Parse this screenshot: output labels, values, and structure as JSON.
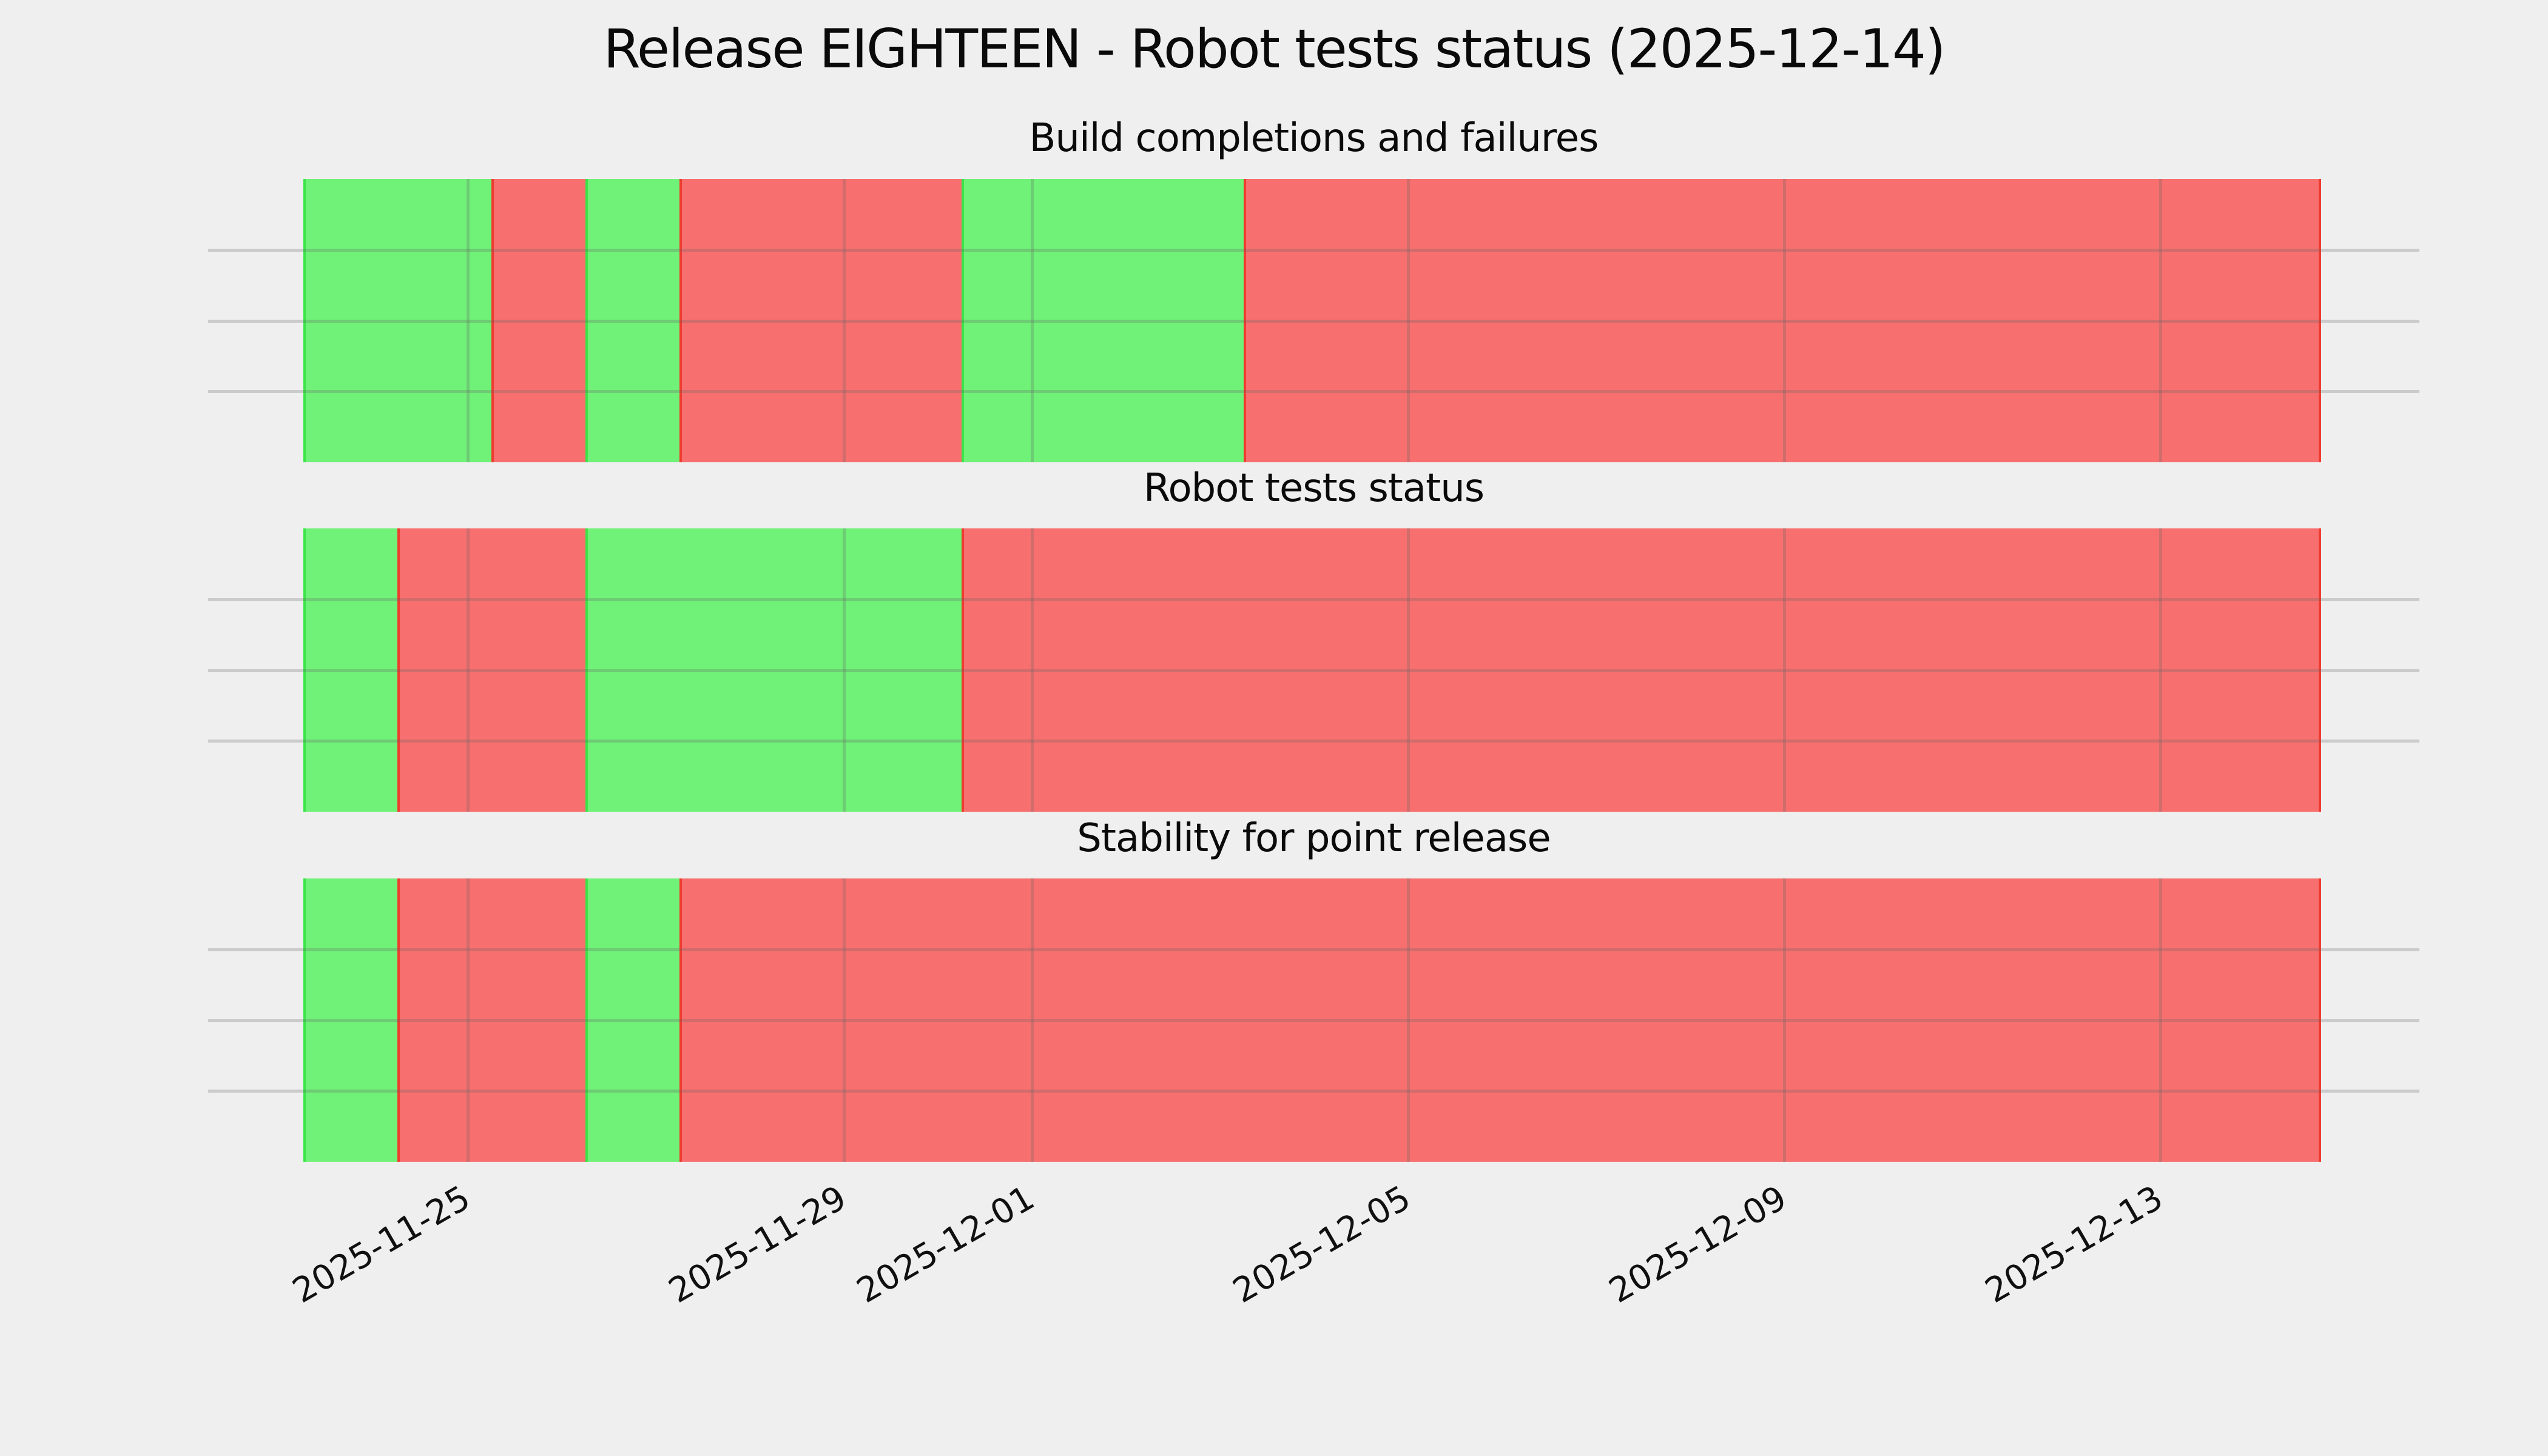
{
  "title": "Release EIGHTEEN - Robot tests status (2025-12-14)",
  "colors": {
    "background": "#efefef",
    "pass_fill": "#70f178",
    "fail_fill": "#f76f6f",
    "pass_edge": "#3be549",
    "fail_edge": "#f03b30",
    "gridline": "#cbcbcb",
    "text": "#0a0a0a"
  },
  "x_axis": {
    "ticks": [
      {
        "label": "2025-11-25",
        "date": "2025-11-25T00:00"
      },
      {
        "label": "2025-11-29",
        "date": "2025-11-29T00:00"
      },
      {
        "label": "2025-12-01",
        "date": "2025-12-01T00:00"
      },
      {
        "label": "2025-12-05",
        "date": "2025-12-05T00:00"
      },
      {
        "label": "2025-12-09",
        "date": "2025-12-09T00:00"
      },
      {
        "label": "2025-12-13",
        "date": "2025-12-13T00:00"
      }
    ],
    "label_rotation_deg": 30
  },
  "chart_data": {
    "type": "heatmap",
    "subtype": "status-timeline",
    "title": "Release EIGHTEEN - Robot tests status (2025-12-14)",
    "x_range": [
      "2025-11-23T06:00",
      "2025-12-14T17:00"
    ],
    "grid": true,
    "legend": false,
    "status_colors": {
      "pass": "green",
      "fail": "red"
    },
    "panels": [
      {
        "title": "Build completions and failures",
        "segments": [
          {
            "status": "pass",
            "start": "2025-11-23T06:00",
            "end": "2025-11-25T06:00"
          },
          {
            "status": "fail",
            "start": "2025-11-25T06:00",
            "end": "2025-11-26T06:00"
          },
          {
            "status": "pass",
            "start": "2025-11-26T06:00",
            "end": "2025-11-27T06:00"
          },
          {
            "status": "fail",
            "start": "2025-11-27T06:00",
            "end": "2025-11-30T06:00"
          },
          {
            "status": "pass",
            "start": "2025-11-30T06:00",
            "end": "2025-12-03T06:00"
          },
          {
            "status": "fail",
            "start": "2025-12-03T06:00",
            "end": "2025-12-14T17:00"
          }
        ]
      },
      {
        "title": "Robot tests status",
        "segments": [
          {
            "status": "pass",
            "start": "2025-11-23T06:00",
            "end": "2025-11-24T06:00"
          },
          {
            "status": "fail",
            "start": "2025-11-24T06:00",
            "end": "2025-11-26T06:00"
          },
          {
            "status": "pass",
            "start": "2025-11-26T06:00",
            "end": "2025-11-30T06:00"
          },
          {
            "status": "fail",
            "start": "2025-11-30T06:00",
            "end": "2025-12-14T17:00"
          }
        ]
      },
      {
        "title": "Stability for point release",
        "segments": [
          {
            "status": "pass",
            "start": "2025-11-23T06:00",
            "end": "2025-11-24T06:00"
          },
          {
            "status": "fail",
            "start": "2025-11-24T06:00",
            "end": "2025-11-26T06:00"
          },
          {
            "status": "pass",
            "start": "2025-11-26T06:00",
            "end": "2025-11-27T06:00"
          },
          {
            "status": "fail",
            "start": "2025-11-27T06:00",
            "end": "2025-12-14T17:00"
          }
        ]
      }
    ]
  }
}
